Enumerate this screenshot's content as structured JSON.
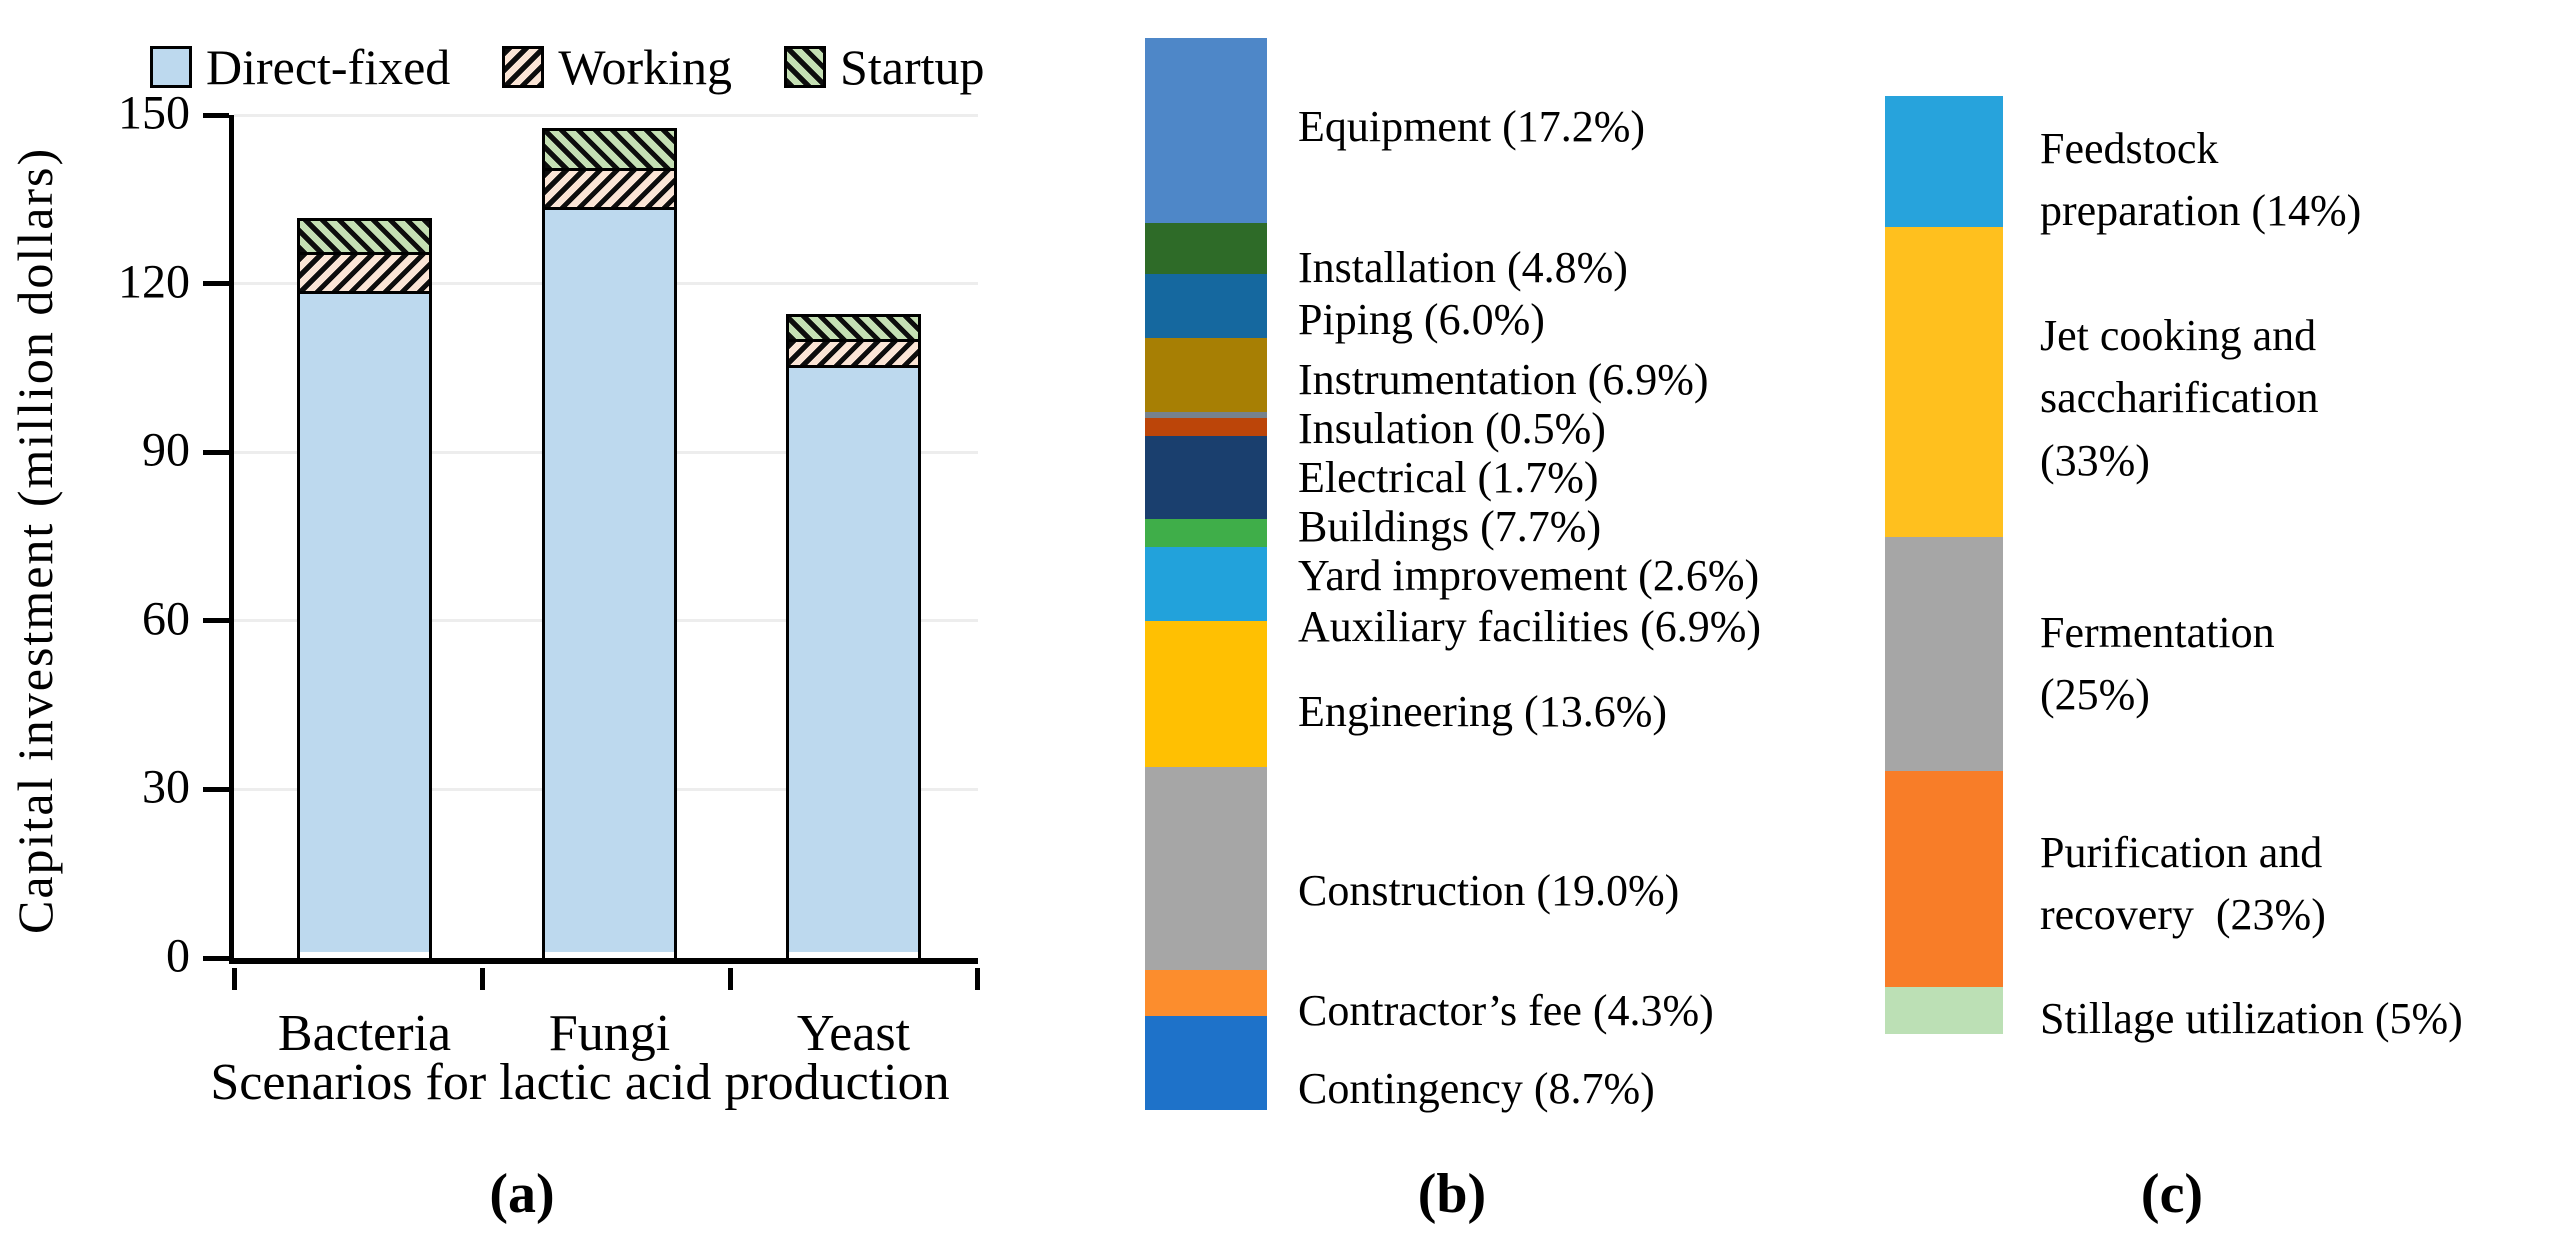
{
  "figure": {
    "captions": {
      "a": "(a)",
      "b": "(b)",
      "c": "(c)"
    }
  },
  "chart_data": [
    {
      "type": "bar",
      "stacked": true,
      "title": "",
      "categories": [
        "Bacteria",
        "Fungi",
        "Yeast"
      ],
      "series": [
        {
          "name": "Direct-fixed",
          "values": [
            117,
            132,
            104
          ],
          "fill": "#BDD9EE",
          "pattern": "solid"
        },
        {
          "name": "Working",
          "values": [
            7,
            7,
            4.5
          ],
          "fill": "#FBE5D6",
          "pattern": "hatch-up"
        },
        {
          "name": "Startup",
          "values": [
            6,
            7,
            4.5
          ],
          "fill": "#C5E0B4",
          "pattern": "hatch-down"
        }
      ],
      "xlabel": "Scenarios for lactic acid production",
      "ylabel": "Capital investment (million dollars)",
      "ylim": [
        0,
        150
      ],
      "yticks": [
        0,
        30,
        60,
        90,
        120,
        150
      ],
      "grid": true,
      "legend_position": "top"
    },
    {
      "type": "stacked_bar_100",
      "orientation": "vertical",
      "segments": [
        {
          "name": "Equipment",
          "pct": 17.2,
          "color": "#4E87C8",
          "label": "Equipment (17.2%)"
        },
        {
          "name": "Installation",
          "pct": 4.8,
          "color": "#2E6B28",
          "label": "Installation (4.8%)"
        },
        {
          "name": "Piping",
          "pct": 6.0,
          "color": "#15689F",
          "label": "Piping (6.0%)"
        },
        {
          "name": "Instrumentation",
          "pct": 6.9,
          "color": "#A77F04",
          "label": "Instrumentation (6.9%)"
        },
        {
          "name": "Insulation",
          "pct": 0.5,
          "color": "#76828E",
          "label": "Insulation (0.5%)"
        },
        {
          "name": "Electrical",
          "pct": 1.7,
          "color": "#BC4509",
          "label": "Electrical (1.7%)"
        },
        {
          "name": "Buildings",
          "pct": 7.7,
          "color": "#1A3F6E",
          "label": "Buildings (7.7%)"
        },
        {
          "name": "Yard improvement",
          "pct": 2.6,
          "color": "#3FAE49",
          "label": "Yard improvement (2.6%)"
        },
        {
          "name": "Auxiliary facilities",
          "pct": 6.9,
          "color": "#22A2DB",
          "label": "Auxiliary facilities (6.9%)"
        },
        {
          "name": "Engineering",
          "pct": 13.6,
          "color": "#FFC002",
          "label": "Engineering (13.6%)"
        },
        {
          "name": "Construction",
          "pct": 19.0,
          "color": "#A6A6A6",
          "label": "Construction (19.0%)"
        },
        {
          "name": "Contractor’s fee",
          "pct": 4.3,
          "color": "#FC8D2D",
          "label": "Contractor’s fee (4.3%)"
        },
        {
          "name": "Contingency",
          "pct": 8.7,
          "color": "#1E72C9",
          "label": "Contingency (8.7%)"
        }
      ]
    },
    {
      "type": "stacked_bar_100",
      "orientation": "vertical",
      "segments": [
        {
          "name": "Feedstock preparation",
          "pct": 14,
          "color": "#27A3DC",
          "label": "Feedstock\npreparation (14%)"
        },
        {
          "name": "Jet cooking and saccharification",
          "pct": 33,
          "color": "#FFC01E",
          "label": "Jet cooking and\nsaccharification\n(33%)"
        },
        {
          "name": "Fermentation",
          "pct": 25,
          "color": "#A6A6A6",
          "label": "Fermentation\n(25%)"
        },
        {
          "name": "Purification and recovery",
          "pct": 23,
          "color": "#F87D28",
          "label": "Purification and\nrecovery  (23%)"
        },
        {
          "name": "Stillage utilization",
          "pct": 5,
          "color": "#BCE0B5",
          "label": "Stillage utilization (5%)"
        }
      ]
    }
  ]
}
